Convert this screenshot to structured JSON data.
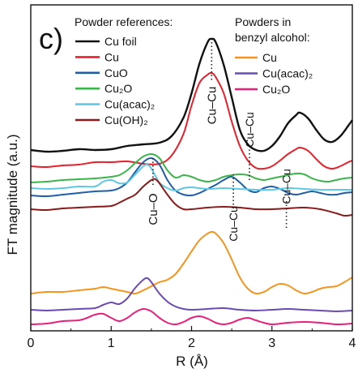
{
  "chart_data": {
    "type": "line",
    "panel_label": "c)",
    "xlabel": "R (Å)",
    "ylabel": "FT magnitude (a.u.)",
    "xlim": [
      0,
      4
    ],
    "x_ticks": [
      "0",
      "1",
      "2",
      "3",
      "4"
    ],
    "y_ticks_shown": false,
    "legend_left_title": "Powder references:",
    "legend_right_title_line1": "Powders in",
    "legend_right_title_line2": "benzyl alcohol:",
    "legend_left": [
      {
        "key": "cu_foil",
        "label": "Cu foil",
        "color": "#111111"
      },
      {
        "key": "cu",
        "label": "Cu",
        "color": "#e8202a"
      },
      {
        "key": "cuo",
        "label": "CuO",
        "color": "#1f5fa8"
      },
      {
        "key": "cu2o",
        "label": "Cu₂O",
        "color": "#3ab54a"
      },
      {
        "key": "cu_acac2",
        "label": "Cu(acac)₂",
        "color": "#5ec8e5"
      },
      {
        "key": "cu_oh2",
        "label": "Cu(OH)₂",
        "color": "#8b1a1a"
      }
    ],
    "legend_right": [
      {
        "key": "ba_cu",
        "label": "Cu",
        "color": "#f7941d"
      },
      {
        "key": "ba_cu_acac2",
        "label": "Cu(acac)₂",
        "color": "#6a4bb3"
      },
      {
        "key": "ba_cu2o",
        "label": "Cu₂O",
        "color": "#e8207a"
      }
    ],
    "annotations": [
      {
        "text": "Cu–O",
        "r": 1.52
      },
      {
        "text": "Cu–Cu",
        "r": 2.25
      },
      {
        "text": "Cu–Cu",
        "r": 2.52
      },
      {
        "text": "Cu–Cu",
        "r": 2.72
      },
      {
        "text": "Cu–Cu",
        "r": 3.18
      }
    ],
    "series": [
      {
        "key": "cu_foil",
        "color": "#111111",
        "points": [
          [
            0,
            185
          ],
          [
            0.2,
            187
          ],
          [
            0.4,
            186
          ],
          [
            0.6,
            184
          ],
          [
            0.8,
            185
          ],
          [
            1.0,
            184
          ],
          [
            1.2,
            180
          ],
          [
            1.4,
            178
          ],
          [
            1.6,
            176
          ],
          [
            1.75,
            168
          ],
          [
            1.9,
            145
          ],
          [
            2.0,
            115
          ],
          [
            2.1,
            78
          ],
          [
            2.2,
            52
          ],
          [
            2.25,
            48
          ],
          [
            2.3,
            52
          ],
          [
            2.4,
            80
          ],
          [
            2.5,
            120
          ],
          [
            2.6,
            160
          ],
          [
            2.7,
            178
          ],
          [
            2.8,
            185
          ],
          [
            2.9,
            186
          ],
          [
            3.0,
            180
          ],
          [
            3.1,
            168
          ],
          [
            3.2,
            152
          ],
          [
            3.3,
            142
          ],
          [
            3.35,
            139
          ],
          [
            3.45,
            146
          ],
          [
            3.55,
            160
          ],
          [
            3.65,
            172
          ],
          [
            3.75,
            175
          ],
          [
            3.85,
            168
          ],
          [
            3.95,
            155
          ],
          [
            4.0,
            148
          ]
        ]
      },
      {
        "key": "cu",
        "color": "#e8202a",
        "points": [
          [
            0,
            205
          ],
          [
            0.2,
            206
          ],
          [
            0.4,
            204
          ],
          [
            0.6,
            203
          ],
          [
            0.8,
            200
          ],
          [
            1.0,
            200
          ],
          [
            1.2,
            199
          ],
          [
            1.4,
            202
          ],
          [
            1.6,
            202
          ],
          [
            1.75,
            192
          ],
          [
            1.9,
            165
          ],
          [
            2.0,
            130
          ],
          [
            2.1,
            102
          ],
          [
            2.2,
            92
          ],
          [
            2.25,
            90
          ],
          [
            2.3,
            95
          ],
          [
            2.4,
            115
          ],
          [
            2.5,
            150
          ],
          [
            2.6,
            180
          ],
          [
            2.7,
            198
          ],
          [
            2.8,
            207
          ],
          [
            2.9,
            208
          ],
          [
            3.0,
            205
          ],
          [
            3.1,
            198
          ],
          [
            3.2,
            190
          ],
          [
            3.3,
            184
          ],
          [
            3.35,
            182
          ],
          [
            3.45,
            186
          ],
          [
            3.55,
            196
          ],
          [
            3.65,
            205
          ],
          [
            3.75,
            208
          ],
          [
            3.85,
            205
          ],
          [
            3.95,
            200
          ],
          [
            4.0,
            198
          ]
        ]
      },
      {
        "key": "cu2o",
        "color": "#3ab54a",
        "points": [
          [
            0,
            225
          ],
          [
            0.2,
            224
          ],
          [
            0.4,
            222
          ],
          [
            0.6,
            221
          ],
          [
            0.8,
            220
          ],
          [
            1.0,
            218
          ],
          [
            1.1,
            216
          ],
          [
            1.2,
            210
          ],
          [
            1.3,
            201
          ],
          [
            1.4,
            193
          ],
          [
            1.5,
            190
          ],
          [
            1.6,
            195
          ],
          [
            1.7,
            210
          ],
          [
            1.8,
            219
          ],
          [
            1.9,
            216
          ],
          [
            2.0,
            218
          ],
          [
            2.1,
            222
          ],
          [
            2.2,
            224
          ],
          [
            2.3,
            222
          ],
          [
            2.4,
            218
          ],
          [
            2.5,
            216
          ],
          [
            2.6,
            215
          ],
          [
            2.7,
            216
          ],
          [
            2.8,
            220
          ],
          [
            2.9,
            222
          ],
          [
            3.0,
            220
          ],
          [
            3.1,
            218
          ],
          [
            3.2,
            216
          ],
          [
            3.3,
            214
          ],
          [
            3.4,
            215
          ],
          [
            3.5,
            220
          ],
          [
            3.6,
            223
          ],
          [
            3.7,
            224
          ],
          [
            3.8,
            222
          ],
          [
            3.9,
            220
          ],
          [
            4.0,
            219
          ]
        ]
      },
      {
        "key": "cuo",
        "color": "#1f5fa8",
        "points": [
          [
            0,
            241
          ],
          [
            0.2,
            242
          ],
          [
            0.4,
            240
          ],
          [
            0.6,
            238
          ],
          [
            0.8,
            236
          ],
          [
            1.0,
            235
          ],
          [
            1.1,
            232
          ],
          [
            1.2,
            225
          ],
          [
            1.3,
            212
          ],
          [
            1.4,
            200
          ],
          [
            1.5,
            195
          ],
          [
            1.6,
            203
          ],
          [
            1.7,
            222
          ],
          [
            1.8,
            235
          ],
          [
            1.9,
            240
          ],
          [
            2.0,
            241
          ],
          [
            2.1,
            238
          ],
          [
            2.2,
            233
          ],
          [
            2.3,
            228
          ],
          [
            2.4,
            222
          ],
          [
            2.5,
            218
          ],
          [
            2.6,
            225
          ],
          [
            2.7,
            234
          ],
          [
            2.8,
            237
          ],
          [
            2.9,
            232
          ],
          [
            3.0,
            230
          ],
          [
            3.1,
            233
          ],
          [
            3.2,
            238
          ],
          [
            3.3,
            240
          ],
          [
            3.4,
            238
          ],
          [
            3.5,
            236
          ],
          [
            3.6,
            238
          ],
          [
            3.7,
            240
          ],
          [
            3.8,
            240
          ],
          [
            3.9,
            238
          ],
          [
            4.0,
            237
          ]
        ]
      },
      {
        "key": "cu_acac2",
        "color": "#5ec8e5",
        "points": [
          [
            0,
            232
          ],
          [
            0.2,
            233
          ],
          [
            0.4,
            232
          ],
          [
            0.6,
            230
          ],
          [
            0.8,
            230
          ],
          [
            0.9,
            224
          ],
          [
            1.0,
            222
          ],
          [
            1.1,
            226
          ],
          [
            1.2,
            225
          ],
          [
            1.3,
            215
          ],
          [
            1.4,
            205
          ],
          [
            1.45,
            203
          ],
          [
            1.5,
            208
          ],
          [
            1.6,
            225
          ],
          [
            1.7,
            232
          ],
          [
            1.8,
            235
          ],
          [
            1.9,
            232
          ],
          [
            2.0,
            231
          ],
          [
            2.2,
            233
          ],
          [
            2.4,
            232
          ],
          [
            2.6,
            233
          ],
          [
            2.8,
            234
          ],
          [
            3.0,
            234
          ],
          [
            3.2,
            232
          ],
          [
            3.4,
            233
          ],
          [
            3.6,
            234
          ],
          [
            3.8,
            234
          ],
          [
            4.0,
            234
          ]
        ]
      },
      {
        "key": "cu_oh2",
        "color": "#8b1a1a",
        "points": [
          [
            0,
            258
          ],
          [
            0.2,
            259
          ],
          [
            0.4,
            257
          ],
          [
            0.6,
            256
          ],
          [
            0.8,
            255
          ],
          [
            1.0,
            254
          ],
          [
            1.1,
            250
          ],
          [
            1.2,
            245
          ],
          [
            1.3,
            240
          ],
          [
            1.4,
            230
          ],
          [
            1.5,
            222
          ],
          [
            1.55,
            221
          ],
          [
            1.6,
            226
          ],
          [
            1.7,
            240
          ],
          [
            1.8,
            252
          ],
          [
            1.9,
            258
          ],
          [
            2.0,
            258
          ],
          [
            2.2,
            256
          ],
          [
            2.4,
            255
          ],
          [
            2.6,
            256
          ],
          [
            2.8,
            258
          ],
          [
            3.0,
            258
          ],
          [
            3.2,
            257
          ],
          [
            3.4,
            256
          ],
          [
            3.6,
            258
          ],
          [
            3.8,
            263
          ],
          [
            3.9,
            266
          ],
          [
            4.0,
            265
          ]
        ]
      },
      {
        "key": "ba_cu",
        "color": "#f7941d",
        "points": [
          [
            0,
            362
          ],
          [
            0.2,
            360
          ],
          [
            0.4,
            360
          ],
          [
            0.6,
            358
          ],
          [
            0.8,
            356
          ],
          [
            0.9,
            354
          ],
          [
            1.0,
            356
          ],
          [
            1.1,
            358
          ],
          [
            1.2,
            360
          ],
          [
            1.3,
            362
          ],
          [
            1.4,
            358
          ],
          [
            1.5,
            353
          ],
          [
            1.6,
            348
          ],
          [
            1.7,
            345
          ],
          [
            1.8,
            338
          ],
          [
            1.9,
            325
          ],
          [
            2.0,
            310
          ],
          [
            2.1,
            296
          ],
          [
            2.2,
            288
          ],
          [
            2.25,
            286
          ],
          [
            2.3,
            288
          ],
          [
            2.4,
            300
          ],
          [
            2.5,
            320
          ],
          [
            2.6,
            342
          ],
          [
            2.7,
            356
          ],
          [
            2.8,
            362
          ],
          [
            2.9,
            360
          ],
          [
            3.0,
            354
          ],
          [
            3.1,
            350
          ],
          [
            3.2,
            352
          ],
          [
            3.3,
            358
          ],
          [
            3.4,
            362
          ],
          [
            3.5,
            360
          ],
          [
            3.6,
            356
          ],
          [
            3.7,
            354
          ],
          [
            3.8,
            353
          ],
          [
            3.9,
            348
          ],
          [
            4.0,
            342
          ]
        ]
      },
      {
        "key": "ba_cu_acac2",
        "color": "#6a4bb3",
        "points": [
          [
            0,
            382
          ],
          [
            0.2,
            383
          ],
          [
            0.4,
            382
          ],
          [
            0.6,
            381
          ],
          [
            0.8,
            380
          ],
          [
            0.9,
            376
          ],
          [
            1.0,
            373
          ],
          [
            1.1,
            375
          ],
          [
            1.2,
            368
          ],
          [
            1.3,
            355
          ],
          [
            1.4,
            345
          ],
          [
            1.45,
            343
          ],
          [
            1.5,
            348
          ],
          [
            1.6,
            362
          ],
          [
            1.7,
            372
          ],
          [
            1.8,
            378
          ],
          [
            1.9,
            381
          ],
          [
            2.0,
            382
          ],
          [
            2.2,
            381
          ],
          [
            2.4,
            380
          ],
          [
            2.6,
            382
          ],
          [
            2.8,
            383
          ],
          [
            3.0,
            382
          ],
          [
            3.2,
            381
          ],
          [
            3.4,
            382
          ],
          [
            3.6,
            383
          ],
          [
            3.8,
            384
          ],
          [
            4.0,
            383
          ]
        ]
      },
      {
        "key": "ba_cu2o",
        "color": "#e8207a",
        "points": [
          [
            0,
            400
          ],
          [
            0.2,
            399
          ],
          [
            0.4,
            396
          ],
          [
            0.6,
            395
          ],
          [
            0.7,
            392
          ],
          [
            0.8,
            388
          ],
          [
            0.9,
            387
          ],
          [
            1.0,
            392
          ],
          [
            1.1,
            396
          ],
          [
            1.2,
            392
          ],
          [
            1.3,
            385
          ],
          [
            1.4,
            381
          ],
          [
            1.5,
            384
          ],
          [
            1.6,
            392
          ],
          [
            1.7,
            398
          ],
          [
            1.8,
            400
          ],
          [
            1.9,
            397
          ],
          [
            2.0,
            392
          ],
          [
            2.1,
            390
          ],
          [
            2.2,
            393
          ],
          [
            2.3,
            398
          ],
          [
            2.4,
            400
          ],
          [
            2.5,
            398
          ],
          [
            2.6,
            394
          ],
          [
            2.7,
            392
          ],
          [
            2.8,
            395
          ],
          [
            2.9,
            398
          ],
          [
            3.0,
            400
          ],
          [
            3.2,
            398
          ],
          [
            3.4,
            397
          ],
          [
            3.6,
            398
          ],
          [
            3.8,
            400
          ],
          [
            4.0,
            399
          ]
        ]
      }
    ]
  }
}
